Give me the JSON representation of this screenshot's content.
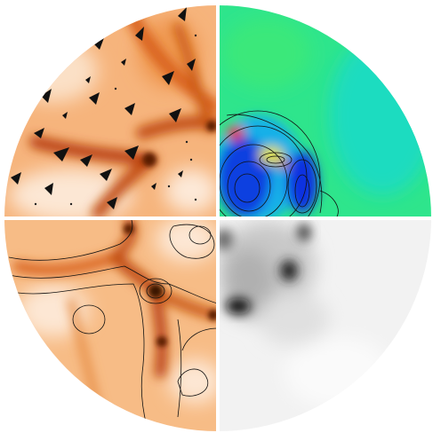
{
  "figure": {
    "description_free": true,
    "panels": [
      {
        "id": "top-left",
        "colormap": "orange",
        "overlay": "arrows"
      },
      {
        "id": "top-right",
        "colormap": "jet",
        "overlay": "contours"
      },
      {
        "id": "bottom-left",
        "colormap": "orange",
        "overlay": "contours"
      },
      {
        "id": "bottom-right",
        "colormap": "gray",
        "overlay": "none"
      }
    ],
    "colors": {
      "orange_light": "#fbe3cd",
      "orange_mid": "#f4a060",
      "orange_dark": "#c0480c",
      "brown": "#3a1205",
      "jet_bg": "#2ee58c",
      "jet_cyan": "#18d8d0",
      "jet_blue": "#1030e0",
      "jet_red": "#e81818",
      "gray_light": "#eeeeee",
      "gray_dark": "#111111",
      "separator": "#ffffff"
    }
  }
}
